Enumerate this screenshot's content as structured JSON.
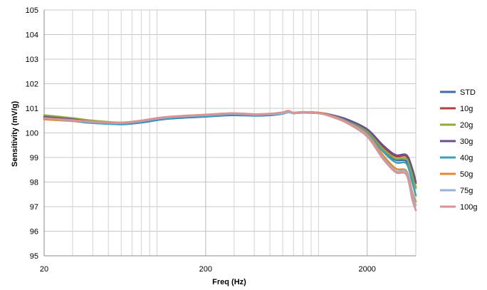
{
  "chart_data": {
    "type": "line",
    "title": "",
    "xlabel": "Freq (Hz)",
    "ylabel": "Sensitivity (mV/g)",
    "x_scale": "log",
    "xlim": [
      20,
      4000
    ],
    "ylim": [
      95,
      105
    ],
    "x_ticks": [
      20,
      200,
      2000
    ],
    "x_tick_labels": [
      "20",
      "200",
      "2000"
    ],
    "y_ticks": [
      95,
      96,
      97,
      98,
      99,
      100,
      101,
      102,
      103,
      104,
      105
    ],
    "y_tick_labels": [
      "95",
      "96",
      "97",
      "98",
      "99",
      "100",
      "101",
      "102",
      "103",
      "104",
      "105"
    ],
    "grid": true,
    "legend_position": "right",
    "x": [
      20,
      30,
      40,
      60,
      80,
      100,
      120,
      150,
      200,
      250,
      300,
      400,
      500,
      600,
      650,
      700,
      800,
      1000,
      1200,
      1500,
      2000,
      2500,
      3000,
      3500,
      3800,
      4000
    ],
    "series": [
      {
        "name": "STD",
        "color": "#3a6fa5",
        "values": [
          100.62,
          100.5,
          100.42,
          100.35,
          100.42,
          100.52,
          100.58,
          100.62,
          100.66,
          100.7,
          100.72,
          100.7,
          100.72,
          100.78,
          100.85,
          100.8,
          100.82,
          100.8,
          100.7,
          100.5,
          100.05,
          99.3,
          98.9,
          98.85,
          98.2,
          97.8
        ]
      },
      {
        "name": "10g",
        "color": "#b5403a",
        "values": [
          100.6,
          100.5,
          100.42,
          100.38,
          100.45,
          100.55,
          100.6,
          100.65,
          100.7,
          100.74,
          100.76,
          100.72,
          100.75,
          100.8,
          100.85,
          100.8,
          100.84,
          100.82,
          100.72,
          100.52,
          100.1,
          99.45,
          99.05,
          99.05,
          98.5,
          97.95
        ]
      },
      {
        "name": "20g",
        "color": "#8faa3c",
        "values": [
          100.72,
          100.6,
          100.5,
          100.42,
          100.5,
          100.6,
          100.65,
          100.68,
          100.72,
          100.76,
          100.78,
          100.74,
          100.76,
          100.82,
          100.86,
          100.82,
          100.85,
          100.82,
          100.72,
          100.5,
          100.05,
          99.35,
          98.95,
          98.95,
          98.3,
          97.75
        ]
      },
      {
        "name": "30g",
        "color": "#6a4f8f",
        "values": [
          100.65,
          100.55,
          100.45,
          100.38,
          100.46,
          100.56,
          100.62,
          100.66,
          100.7,
          100.74,
          100.76,
          100.72,
          100.75,
          100.8,
          100.85,
          100.8,
          100.84,
          100.82,
          100.73,
          100.55,
          100.15,
          99.5,
          99.1,
          99.1,
          98.55,
          98.0
        ]
      },
      {
        "name": "40g",
        "color": "#3aa0bc",
        "values": [
          100.58,
          100.48,
          100.4,
          100.36,
          100.44,
          100.54,
          100.6,
          100.64,
          100.68,
          100.72,
          100.74,
          100.72,
          100.74,
          100.78,
          100.84,
          100.8,
          100.82,
          100.8,
          100.7,
          100.48,
          100.0,
          99.25,
          98.8,
          98.75,
          98.0,
          97.45
        ]
      },
      {
        "name": "50g",
        "color": "#e28a2e",
        "values": [
          100.55,
          100.48,
          100.45,
          100.42,
          100.5,
          100.6,
          100.65,
          100.7,
          100.74,
          100.78,
          100.8,
          100.76,
          100.78,
          100.82,
          100.86,
          100.82,
          100.85,
          100.82,
          100.7,
          100.45,
          99.95,
          99.1,
          98.55,
          98.45,
          97.6,
          97.2
        ]
      },
      {
        "name": "75g",
        "color": "#98b1d6",
        "values": [
          100.6,
          100.5,
          100.44,
          100.4,
          100.48,
          100.58,
          100.64,
          100.68,
          100.72,
          100.76,
          100.78,
          100.74,
          100.76,
          100.8,
          100.85,
          100.8,
          100.83,
          100.8,
          100.68,
          100.42,
          99.9,
          99.0,
          98.45,
          98.4,
          97.5,
          97.05
        ]
      },
      {
        "name": "100g",
        "color": "#dc9294",
        "values": [
          100.6,
          100.52,
          100.46,
          100.42,
          100.5,
          100.6,
          100.66,
          100.7,
          100.74,
          100.78,
          100.8,
          100.76,
          100.78,
          100.84,
          100.9,
          100.82,
          100.85,
          100.8,
          100.66,
          100.4,
          99.85,
          98.95,
          98.4,
          98.3,
          97.3,
          96.85
        ]
      }
    ]
  }
}
